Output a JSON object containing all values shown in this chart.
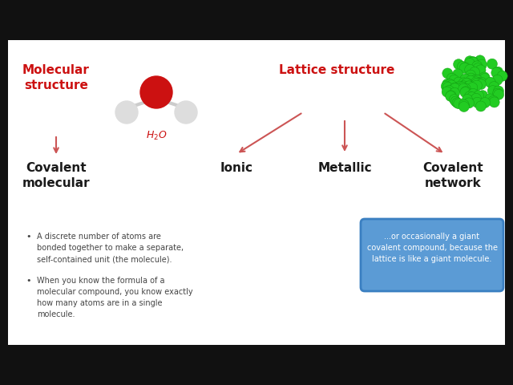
{
  "bg_color": "#111111",
  "slide_color": "#ffffff",
  "red_color": "#cc1111",
  "arrow_color": "#cc5555",
  "dark_text": "#1a1a1a",
  "gray_text": "#444444",
  "box_color": "#5b9bd5",
  "box_edge_color": "#3a7fc1",
  "box_text_color": "#ffffff",
  "title_mol": "Molecular\nstructure",
  "title_lat": "Lattice structure",
  "label_mol": "Covalent\nmolecular",
  "label_ionic": "Ionic",
  "label_metallic": "Metallic",
  "label_cov_net": "Covalent\nnetwork",
  "bullet1_line1": "A discrete number of atoms are",
  "bullet1_line2": "bonded together to make a separate,",
  "bullet1_line3": "self-contained unit (the molecule).",
  "bullet2_line1": "When you know the formula of a",
  "bullet2_line2": "molecular compound, you know exactly",
  "bullet2_line3": "how many atoms are in a single",
  "bullet2_line4": "molecule.",
  "box_line1": "...or occasionally a giant",
  "box_line2": "covalent compound, because the",
  "box_line3": "lattice is like a giant molecule."
}
